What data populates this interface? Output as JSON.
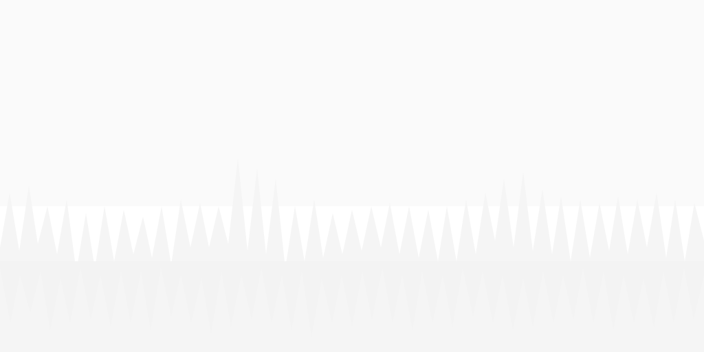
{
  "background": {
    "sky_color": "#fafafa",
    "front_wave_color": "#f3f3f3",
    "back_wave_color": "#f5f5f5",
    "bottom_color": "#fdfdfd"
  }
}
